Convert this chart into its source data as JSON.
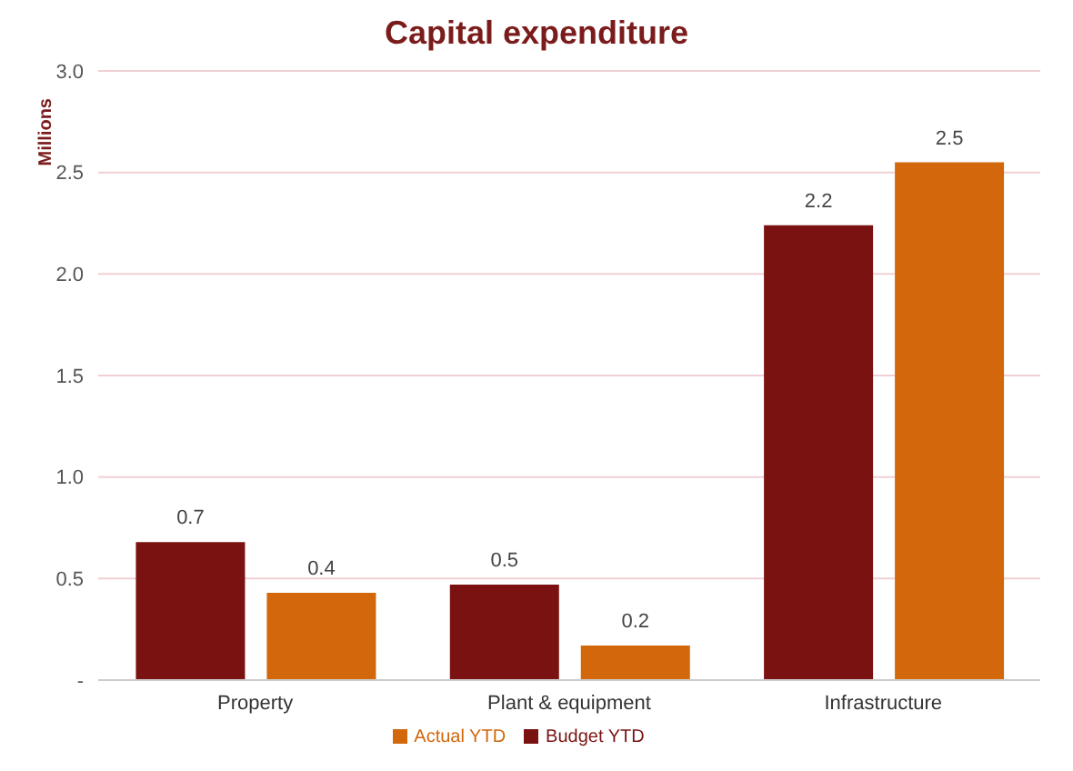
{
  "chart_data": {
    "type": "bar",
    "title": "Capital expenditure",
    "ylabel": "Millions",
    "categories": [
      "Property",
      "Plant & equipment",
      "Infrastructure"
    ],
    "series": [
      {
        "name": "Budget YTD",
        "color": "#7a1212",
        "values": [
          0.68,
          0.47,
          2.24
        ],
        "value_labels": [
          "0.7",
          "0.5",
          "2.2"
        ]
      },
      {
        "name": "Actual YTD",
        "color": "#d2670c",
        "values": [
          0.43,
          0.17,
          2.55
        ],
        "value_labels": [
          "0.4",
          "0.2",
          "2.5"
        ]
      }
    ],
    "ylim": [
      0,
      3
    ],
    "yticks": [
      {
        "value": 0,
        "label": "-"
      },
      0.5,
      {
        "value": 1,
        "label": "1.0"
      },
      1.5,
      {
        "value": 2,
        "label": "2.0"
      },
      2.5,
      {
        "value": 3,
        "label": "3.0"
      }
    ],
    "grid": "y",
    "legend": "bottom"
  }
}
